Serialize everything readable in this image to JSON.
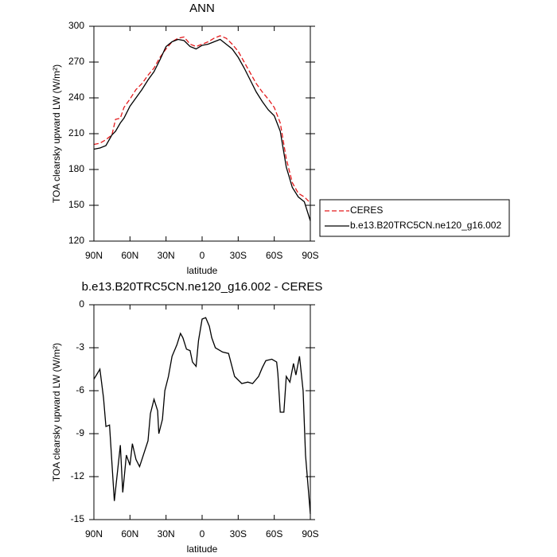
{
  "chart_data": [
    {
      "type": "line",
      "title": "ANN",
      "xlabel": "latitude",
      "ylabel": "TOA clearsky upward LW (W/m²)",
      "x": [
        90,
        85,
        80,
        75,
        72,
        68,
        65,
        60,
        55,
        50,
        45,
        40,
        35,
        30,
        25,
        20,
        15,
        10,
        5,
        0,
        -5,
        -10,
        -15,
        -20,
        -25,
        -30,
        -35,
        -40,
        -45,
        -50,
        -55,
        -60,
        -65,
        -70,
        -75,
        -80,
        -85,
        -90
      ],
      "series": [
        {
          "name": "CERES",
          "color": "#e41a1c",
          "linestyle": "dashed",
          "values": [
            201,
            202,
            205,
            209,
            222,
            223,
            232,
            239,
            247,
            252,
            259,
            265,
            274,
            281,
            287,
            290,
            291,
            285,
            283,
            285,
            287,
            290,
            292,
            290,
            285,
            279,
            270,
            261,
            252,
            245,
            239,
            232,
            219,
            189,
            169,
            160,
            157,
            152
          ]
        },
        {
          "name": "b.e13.B20TRC5CN.ne120_g16.002",
          "color": "#000000",
          "linestyle": "solid",
          "values": [
            197,
            198,
            200,
            209,
            212,
            219,
            223,
            233,
            240,
            247,
            255,
            262,
            272,
            283,
            287,
            289,
            288,
            283,
            281,
            284,
            285,
            287,
            289,
            285,
            281,
            274,
            265,
            255,
            245,
            237,
            230,
            225,
            212,
            182,
            165,
            157,
            153,
            137
          ]
        }
      ],
      "xlim": [
        90,
        -90
      ],
      "xticks": [
        {
          "value": 90,
          "label": "90N"
        },
        {
          "value": 60,
          "label": "60N"
        },
        {
          "value": 30,
          "label": "30N"
        },
        0,
        {
          "value": -30,
          "label": "30S"
        },
        {
          "value": -60,
          "label": "60S"
        },
        {
          "value": -90,
          "label": "90S"
        }
      ],
      "ylim": [
        120,
        300
      ],
      "yticks": [
        120,
        150,
        180,
        210,
        240,
        270,
        300
      ],
      "legend": "right"
    },
    {
      "type": "line",
      "title": "b.e13.B20TRC5CN.ne120_g16.002 - CERES",
      "xlabel": "latitude",
      "ylabel": "TOA clearsky upward LW (W/m²)",
      "x": [
        90,
        85,
        82,
        80,
        77,
        73,
        68,
        66,
        63,
        60,
        58,
        55,
        52,
        45,
        43,
        40,
        37,
        36,
        33,
        31,
        28,
        25,
        21,
        18,
        16,
        13,
        10,
        8,
        5,
        3,
        0,
        -3,
        -6,
        -8,
        -11,
        -17,
        -22,
        -27,
        -33,
        -38,
        -42,
        -47,
        -50,
        -53,
        -58,
        -62,
        -63,
        -65,
        -68,
        -70,
        -73,
        -76,
        -78,
        -81,
        -84,
        -86,
        -90
      ],
      "values": [
        -5.2,
        -4.5,
        -6.5,
        -8.5,
        -8.4,
        -13.7,
        -9.8,
        -13.1,
        -10.5,
        -11.2,
        -9.7,
        -10.8,
        -11.3,
        -9.5,
        -7.6,
        -6.6,
        -7.4,
        -9.0,
        -8.0,
        -6.0,
        -5.0,
        -3.6,
        -2.8,
        -2.0,
        -2.3,
        -3.1,
        -3.2,
        -4.0,
        -4.3,
        -2.5,
        -1.0,
        -0.9,
        -1.5,
        -2.3,
        -3.0,
        -3.3,
        -3.4,
        -5.0,
        -5.5,
        -5.4,
        -5.5,
        -5.0,
        -4.4,
        -3.9,
        -3.8,
        -4.0,
        -4.8,
        -7.5,
        -7.5,
        -5.0,
        -5.4,
        -4.1,
        -4.9,
        -3.6,
        -6.0,
        -10.5,
        -14.6
      ],
      "color": "#000000",
      "linestyle": "solid",
      "xlim": [
        90,
        -90
      ],
      "xticks": [
        {
          "value": 90,
          "label": "90N"
        },
        {
          "value": 60,
          "label": "60N"
        },
        {
          "value": 30,
          "label": "30N"
        },
        0,
        {
          "value": -30,
          "label": "30S"
        },
        {
          "value": -60,
          "label": "60S"
        },
        {
          "value": -90,
          "label": "90S"
        }
      ],
      "ylim": [
        -15,
        0
      ],
      "yticks": [
        -15,
        -12,
        -9,
        -6,
        -3,
        0
      ]
    }
  ]
}
